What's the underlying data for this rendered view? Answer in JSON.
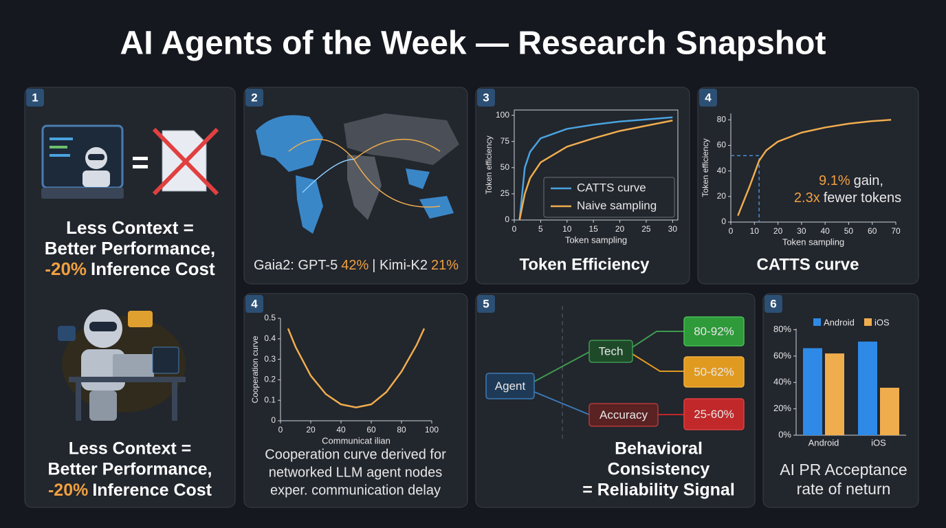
{
  "title": "AI Agents of the Week — Research Snapshot",
  "panels": [
    {
      "number": "1",
      "captions": [
        {
          "line1": "Less Context =",
          "line2": "Better Performance,",
          "highlight": "-20%",
          "line3": "Inference Cost"
        },
        {
          "line1": "Less Context =",
          "line2": "Better Performance,",
          "highlight": "-20%",
          "line3": "Inference Cost"
        }
      ]
    },
    {
      "number": "2",
      "caption": {
        "label_a": "Gaia2: GPT-5",
        "value_a": "42%",
        "label_b": "| Kimi-K2",
        "value_b": "21%"
      }
    },
    {
      "number": "3",
      "chart_data": {
        "type": "line",
        "title": "Token Efficiency",
        "x_label": "Token sampling",
        "y_label": "Token efficiency",
        "x": [
          1,
          2,
          3,
          5,
          10,
          15,
          20,
          25,
          30
        ],
        "series": [
          {
            "name": "CATTS curve",
            "color": "#4aa3e0",
            "values": [
              0,
              50,
              65,
              78,
              87,
              91,
              94,
              96,
              98
            ]
          },
          {
            "name": "Naive sampling",
            "color": "#f0ad4e",
            "values": [
              0,
              25,
              40,
              55,
              70,
              78,
              85,
              90,
              95
            ]
          }
        ],
        "xlim": [
          0,
          31
        ],
        "xticks": [
          0,
          5,
          10,
          15,
          20,
          25,
          30
        ],
        "ylim": [
          0,
          105
        ],
        "yticks": [
          0,
          25,
          50,
          75,
          100
        ],
        "frame": true,
        "legend": "lower right"
      }
    },
    {
      "number": "4",
      "chart_data": {
        "type": "line",
        "title": "CATTS curve",
        "x_label": "Token sampling",
        "y_label": "Token efficiency",
        "x": [
          3,
          8,
          12,
          15,
          20,
          30,
          40,
          50,
          60,
          68
        ],
        "values": [
          5,
          28,
          48,
          56,
          63,
          70,
          74,
          77,
          79,
          80
        ],
        "color": "#f0ad4e",
        "guide": {
          "x": 12,
          "y": 52,
          "color": "#4a90d9"
        },
        "annotation": {
          "value": "9.1%",
          "text_a": "gain,",
          "factor": "2.3x",
          "text_b": "fewer tokens"
        },
        "xlim": [
          0,
          70
        ],
        "xticks": [
          0,
          10,
          20,
          30,
          40,
          50,
          60,
          70
        ],
        "ylim": [
          0,
          85
        ],
        "yticks": [
          0,
          20,
          40,
          60,
          80
        ],
        "frame": false
      }
    },
    {
      "number": "4",
      "chart_data": {
        "type": "line",
        "x_label": "Communicat ilian",
        "y_label": "Cooperation curve",
        "x": [
          5,
          10,
          20,
          30,
          40,
          50,
          60,
          70,
          80,
          90,
          95
        ],
        "values": [
          0.45,
          0.36,
          0.22,
          0.13,
          0.08,
          0.065,
          0.08,
          0.14,
          0.24,
          0.37,
          0.45
        ],
        "color": "#f0ad4e",
        "xlim": [
          0,
          100
        ],
        "xticks": [
          0,
          20,
          40,
          60,
          80,
          100
        ],
        "ylim": [
          0,
          0.5
        ],
        "yticks": [
          0,
          0.1,
          0.2,
          0.3,
          0.4,
          0.5
        ],
        "frame": false
      },
      "caption": [
        "Cooperation curve derived for",
        "networked LLM agent nodes",
        "exper. communication delay"
      ]
    },
    {
      "number": "5",
      "nodes": [
        {
          "label": "Agent",
          "color": "#1f3a56",
          "stroke": "#3d7bb8"
        },
        {
          "label": "Tech",
          "color": "#1f4a2a",
          "stroke": "#3f9a4f"
        },
        {
          "label": "Accuracy",
          "color": "#5a2222",
          "stroke": "#b43a3a"
        },
        {
          "label": "80-92%",
          "color": "#2e9a3a",
          "stroke": "#45c055"
        },
        {
          "label": "50-62%",
          "color": "#e09a20",
          "stroke": "#f0b040"
        },
        {
          "label": "25-60%",
          "color": "#c0282a",
          "stroke": "#e04040"
        }
      ],
      "caption": [
        "Behavioral",
        "Consistency",
        "= Reliability Signal"
      ]
    },
    {
      "number": "6",
      "chart_data": {
        "type": "bar",
        "title": [
          "AI PR Acceptance",
          "rate of neturn"
        ],
        "categories": [
          "Android",
          "iOS"
        ],
        "series": [
          {
            "name": "Android",
            "color": "#2e8ae6",
            "values": [
              66,
              71
            ]
          },
          {
            "name": "iOS",
            "color": "#f0ad4e",
            "values": [
              62,
              36
            ]
          }
        ],
        "ylim": [
          0,
          85
        ],
        "yticks": [
          {
            "value": 0,
            "label": "0%"
          },
          {
            "value": 20,
            "label": "20%"
          },
          {
            "value": 40,
            "label": "40%"
          },
          {
            "value": 60,
            "label": "60%"
          },
          {
            "value": 80,
            "label": "80%"
          }
        ],
        "legend": "top"
      }
    }
  ]
}
